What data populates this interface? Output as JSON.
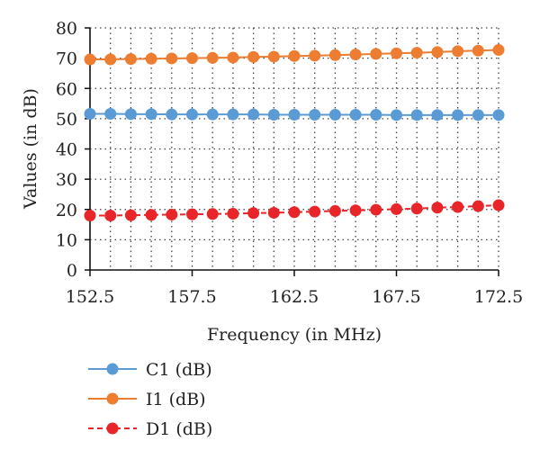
{
  "chart_data": {
    "type": "line",
    "xlabel": "Frequency (in MHz)",
    "ylabel": "Values (in dB)",
    "xlim": [
      152.5,
      172.5
    ],
    "ylim": [
      0,
      80
    ],
    "x_ticks": [
      "152.5",
      "157.5",
      "162.5",
      "167.5",
      "172.5"
    ],
    "y_ticks": [
      "0",
      "10",
      "20",
      "30",
      "40",
      "50",
      "60",
      "70",
      "80"
    ],
    "grid": "dotted",
    "legend_position": "bottom-left",
    "x": [
      152.5,
      153.5,
      154.5,
      155.5,
      156.5,
      157.5,
      158.5,
      159.5,
      160.5,
      161.5,
      162.5,
      163.5,
      164.5,
      165.5,
      166.5,
      167.5,
      168.5,
      169.5,
      170.5,
      171.5,
      172.5
    ],
    "series": [
      {
        "name": "C1 (dB)",
        "color": "#5b9bd5",
        "line_style": "solid",
        "values": [
          51.6,
          51.6,
          51.5,
          51.5,
          51.4,
          51.4,
          51.4,
          51.4,
          51.4,
          51.3,
          51.3,
          51.3,
          51.3,
          51.3,
          51.3,
          51.2,
          51.2,
          51.2,
          51.2,
          51.2,
          51.2
        ]
      },
      {
        "name": "I1 (dB)",
        "color": "#ed7d31",
        "line_style": "solid",
        "values": [
          69.6,
          69.6,
          69.7,
          69.8,
          69.9,
          70.0,
          70.1,
          70.2,
          70.4,
          70.5,
          70.7,
          70.8,
          71.0,
          71.2,
          71.4,
          71.6,
          71.8,
          72.0,
          72.3,
          72.5,
          72.7
        ]
      },
      {
        "name": "D1 (dB)",
        "color": "#e8262a",
        "line_style": "dashed",
        "values": [
          18.0,
          18.0,
          18.1,
          18.2,
          18.3,
          18.4,
          18.5,
          18.6,
          18.8,
          18.9,
          19.1,
          19.3,
          19.5,
          19.7,
          19.9,
          20.1,
          20.3,
          20.6,
          20.8,
          21.1,
          21.4
        ]
      }
    ]
  }
}
